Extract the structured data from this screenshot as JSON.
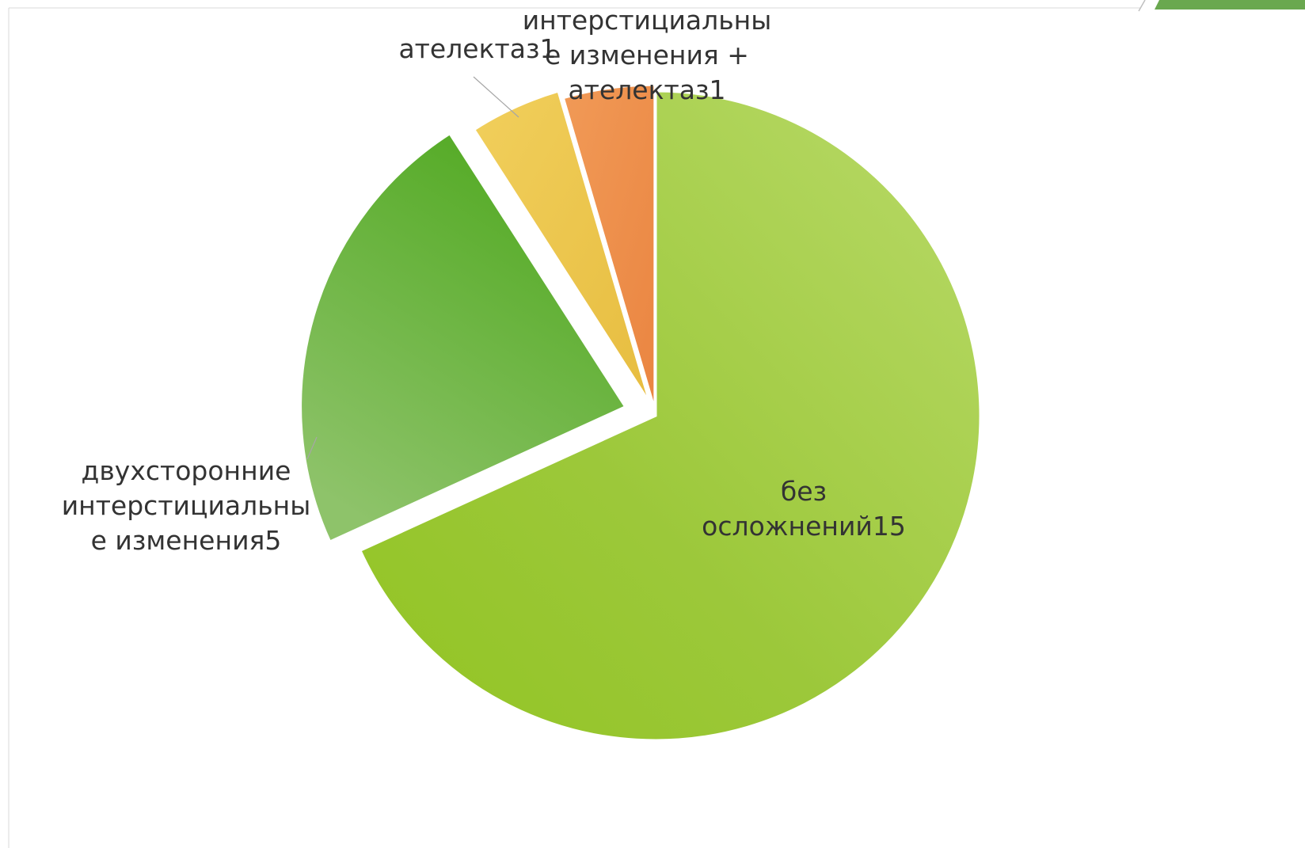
{
  "chart_data": {
    "type": "pie",
    "title": "",
    "slices": [
      {
        "label": "без осложнений",
        "value": 15,
        "color": "#9cc83a",
        "label_lines": [
          "без",
          "осложнений15"
        ]
      },
      {
        "label": "двухсторонние интерстициальные изменения",
        "value": 5,
        "color": "#6fb43c",
        "label_lines": [
          "двухсторонние",
          "интерстициальны",
          "е изменения5"
        ]
      },
      {
        "label": "ателектаз",
        "value": 1,
        "color": "#ebc54f",
        "label_lines": [
          "ателектаз1"
        ]
      },
      {
        "label": "интерстициальные изменения + ателектаз",
        "value": 1,
        "color": "#ec8f4c",
        "label_lines": [
          "интерстициальны",
          "е изменения +",
          "ателектаз1"
        ]
      }
    ],
    "legend": "none"
  }
}
